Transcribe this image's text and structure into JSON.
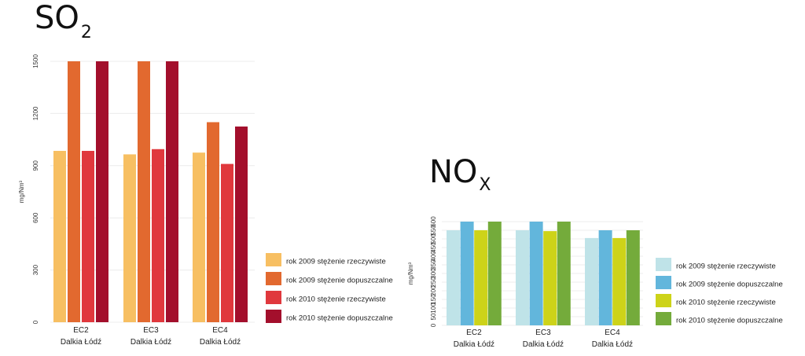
{
  "chart_data": [
    {
      "type": "bar",
      "title": "SO",
      "title_sub": "2",
      "ylabel": "mg/Nm³",
      "ylim": [
        0,
        1500
      ],
      "yticks": [
        0,
        300,
        600,
        900,
        1200,
        1500
      ],
      "categories": [
        {
          "line1": "EC2",
          "line2": "Dalkia Łódź"
        },
        {
          "line1": "EC3",
          "line2": "Dalkia Łódź"
        },
        {
          "line1": "EC4",
          "line2": "Dalkia Łódź"
        }
      ],
      "series": [
        {
          "name": "rok 2009 stężenie rzeczywiste",
          "color": "#f7bf62",
          "values": [
            985,
            965,
            975
          ]
        },
        {
          "name": "rok 2009 stężenie dopuszczalne",
          "color": "#e2692f",
          "values": [
            1500,
            1500,
            1150
          ]
        },
        {
          "name": "rok 2010 stężenie rzeczywiste",
          "color": "#e0383d",
          "values": [
            985,
            995,
            910
          ]
        },
        {
          "name": "rok 2010 stężenie dopuszczalne",
          "color": "#a30f2c",
          "values": [
            1500,
            1500,
            1125
          ]
        }
      ],
      "grid": true,
      "legend": "right"
    },
    {
      "type": "bar",
      "title": "NO",
      "title_sub": "X",
      "ylabel": "mg/Nm³",
      "ylim": [
        0,
        600
      ],
      "yticks": [
        0,
        50,
        100,
        150,
        200,
        250,
        300,
        350,
        400,
        450,
        500,
        550,
        600
      ],
      "categories": [
        {
          "line1": "EC2",
          "line2": "Dalkia Łódź"
        },
        {
          "line1": "EC3",
          "line2": "Dalkia Łódź"
        },
        {
          "line1": "EC4",
          "line2": "Dalkia Łódź"
        }
      ],
      "series": [
        {
          "name": "rok 2009 stężenie rzeczywiste",
          "color": "#bfe3e8",
          "values": [
            550,
            550,
            505
          ]
        },
        {
          "name": "rok 2009 stężenie dopuszczalne",
          "color": "#62b6dc",
          "values": [
            600,
            600,
            550
          ]
        },
        {
          "name": "rok 2010 stężenie rzeczywiste",
          "color": "#cdd319",
          "values": [
            550,
            545,
            505
          ]
        },
        {
          "name": "rok 2010 stężenie dopuszczalne",
          "color": "#74ab3b",
          "values": [
            600,
            600,
            550
          ]
        }
      ],
      "grid": true,
      "legend": "right"
    }
  ]
}
